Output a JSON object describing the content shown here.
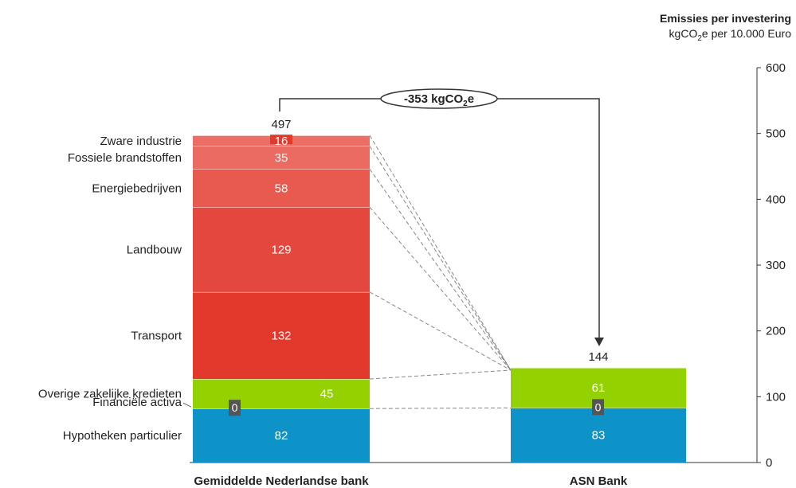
{
  "chart_data": {
    "type": "bar",
    "title": "",
    "axis_title": "Emissies per investering",
    "axis_unit": {
      "pre": "kgCO",
      "sub": "2",
      "post": "e per 10.000 Euro"
    },
    "ylim": [
      0,
      600
    ],
    "yticks": [
      "0",
      "100",
      "200",
      "300",
      "400",
      "500",
      "600"
    ],
    "categories": [
      "Gemiddelde Nederlandse bank",
      "ASN Bank"
    ],
    "totals": [
      "497",
      "144"
    ],
    "difference_label": {
      "main": "-353 kgCO",
      "sub": "2",
      "post": "e"
    },
    "segment_labels": [
      "Hypotheken particulier",
      "Financiële activa",
      "Overige zakelijke kredieten",
      "Transport",
      "Landbouw",
      "Energiebedrijven",
      "Fossiele brandstoffen",
      "Zware industrie"
    ],
    "series": [
      {
        "name": "Hypotheken particulier",
        "color": "#0e93c9",
        "values": [
          82,
          83
        ],
        "labels": [
          "82",
          "83"
        ]
      },
      {
        "name": "Financiële activa",
        "color": "#555555",
        "values": [
          0,
          0
        ],
        "labels": [
          "0",
          "0"
        ]
      },
      {
        "name": "Overige zakelijke kredieten",
        "color": "#94d100",
        "values": [
          45,
          61
        ],
        "labels": [
          "45",
          "61"
        ]
      },
      {
        "name": "Transport",
        "color": "#e2392c",
        "values": [
          132,
          0
        ],
        "labels": [
          "132",
          ""
        ]
      },
      {
        "name": "Landbouw",
        "color": "#e4473d",
        "values": [
          129,
          0
        ],
        "labels": [
          "129",
          ""
        ]
      },
      {
        "name": "Energiebedrijven",
        "color": "#e85a50",
        "values": [
          58,
          0
        ],
        "labels": [
          "58",
          ""
        ]
      },
      {
        "name": "Fossiele brandstoffen",
        "color": "#eb6a61",
        "values": [
          35,
          0
        ],
        "labels": [
          "35",
          ""
        ]
      },
      {
        "name": "Zware industrie",
        "color": "#ec6d64",
        "values": [
          16,
          0
        ],
        "labels": [
          "16",
          ""
        ]
      }
    ]
  }
}
